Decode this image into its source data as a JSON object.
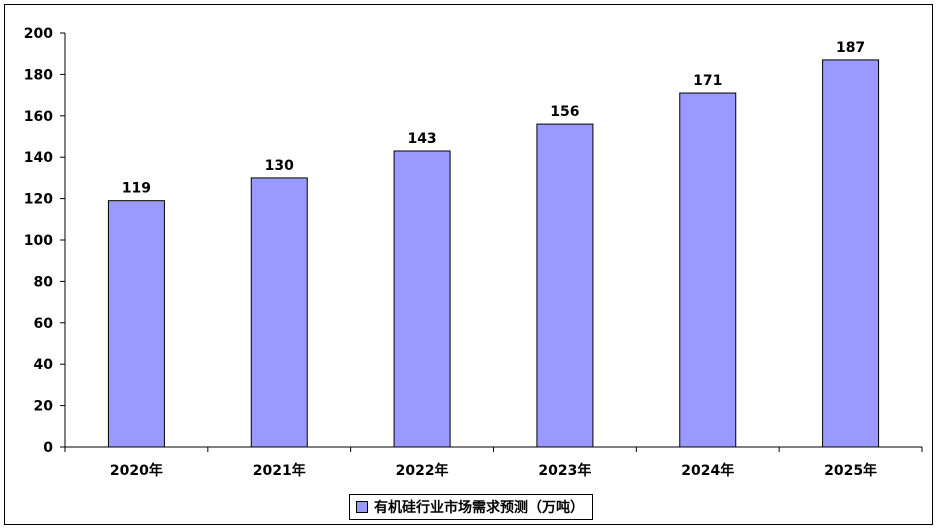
{
  "chart_data": {
    "type": "bar",
    "categories": [
      "2020年",
      "2021年",
      "2022年",
      "2023年",
      "2024年",
      "2025年"
    ],
    "series": [
      {
        "name": "有机硅行业市场需求预测（万吨）",
        "values": [
          119,
          130,
          143,
          156,
          171,
          187
        ]
      }
    ],
    "ylim": [
      0,
      200
    ],
    "yticks": [
      0,
      20,
      40,
      60,
      80,
      100,
      120,
      140,
      160,
      180,
      200
    ],
    "grid": false,
    "legend_position": "bottom",
    "data_labels": true
  },
  "colors": {
    "bar_fill": "#9999ff",
    "bar_stroke": "#000000",
    "axis": "#000000"
  }
}
